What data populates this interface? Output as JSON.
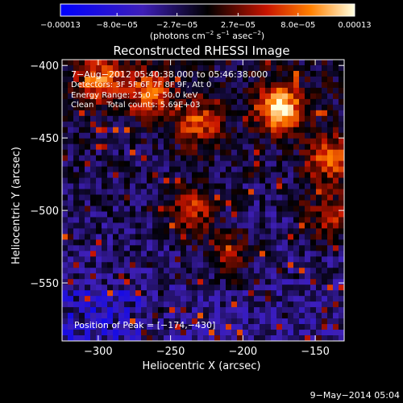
{
  "chart_data": {
    "type": "heatmap",
    "title": "Reconstructed RHESSI Image",
    "xlabel": "Heliocentric X (arcsec)",
    "ylabel": "Heliocentric Y (arcsec)",
    "xlim": [
      -325,
      -130
    ],
    "ylim": [
      -590,
      -396
    ],
    "xticks": [
      -300,
      -250,
      -200,
      -150
    ],
    "yticks": [
      -400,
      -450,
      -500,
      -550
    ],
    "xtick_labels": [
      "−300",
      "−250",
      "−200",
      "−150"
    ],
    "ytick_labels": [
      "−400",
      "−450",
      "−500",
      "−550"
    ],
    "colorbar": {
      "range": [
        -0.00013,
        0.00013
      ],
      "tick_values": [
        -0.00013,
        -8e-05,
        -2.7e-05,
        2.7e-05,
        8e-05,
        0.00013
      ],
      "tick_labels": [
        "−0.00013",
        "−8.0e−05",
        "−2.7e−05",
        "2.7e−05",
        "8.0e−05",
        "0.00013"
      ],
      "units_parts": [
        "(photons cm",
        "−2",
        " s",
        "−1",
        " asec",
        "−2",
        ")"
      ]
    },
    "annotations": [
      "7−Aug−2012 05:40:38.000 to 05:46:38.000",
      "Detectors: 3F 5F 6F 7F 8F 9F, Att 0",
      "Energy Range: 25.0 − 50.0 keV",
      "Clean     Total counts: 5.69E+03"
    ],
    "peak_label": "Position of Peak = [−174,−430]",
    "peak": [
      -174,
      -430
    ],
    "bright_sources": [
      {
        "x": -174,
        "y": -430,
        "relative_intensity": 1.0
      },
      {
        "x": -140,
        "y": -465,
        "relative_intensity": 0.75
      },
      {
        "x": -300,
        "y": -410,
        "relative_intensity": 0.7
      },
      {
        "x": -265,
        "y": -420,
        "relative_intensity": 0.65
      },
      {
        "x": -230,
        "y": -440,
        "relative_intensity": 0.6
      },
      {
        "x": -235,
        "y": -500,
        "relative_intensity": 0.55
      },
      {
        "x": -140,
        "y": -505,
        "relative_intensity": 0.5
      },
      {
        "x": -210,
        "y": -530,
        "relative_intensity": 0.45
      }
    ],
    "grid": false
  },
  "footer": {
    "date": "9−May−2014 05:04"
  }
}
